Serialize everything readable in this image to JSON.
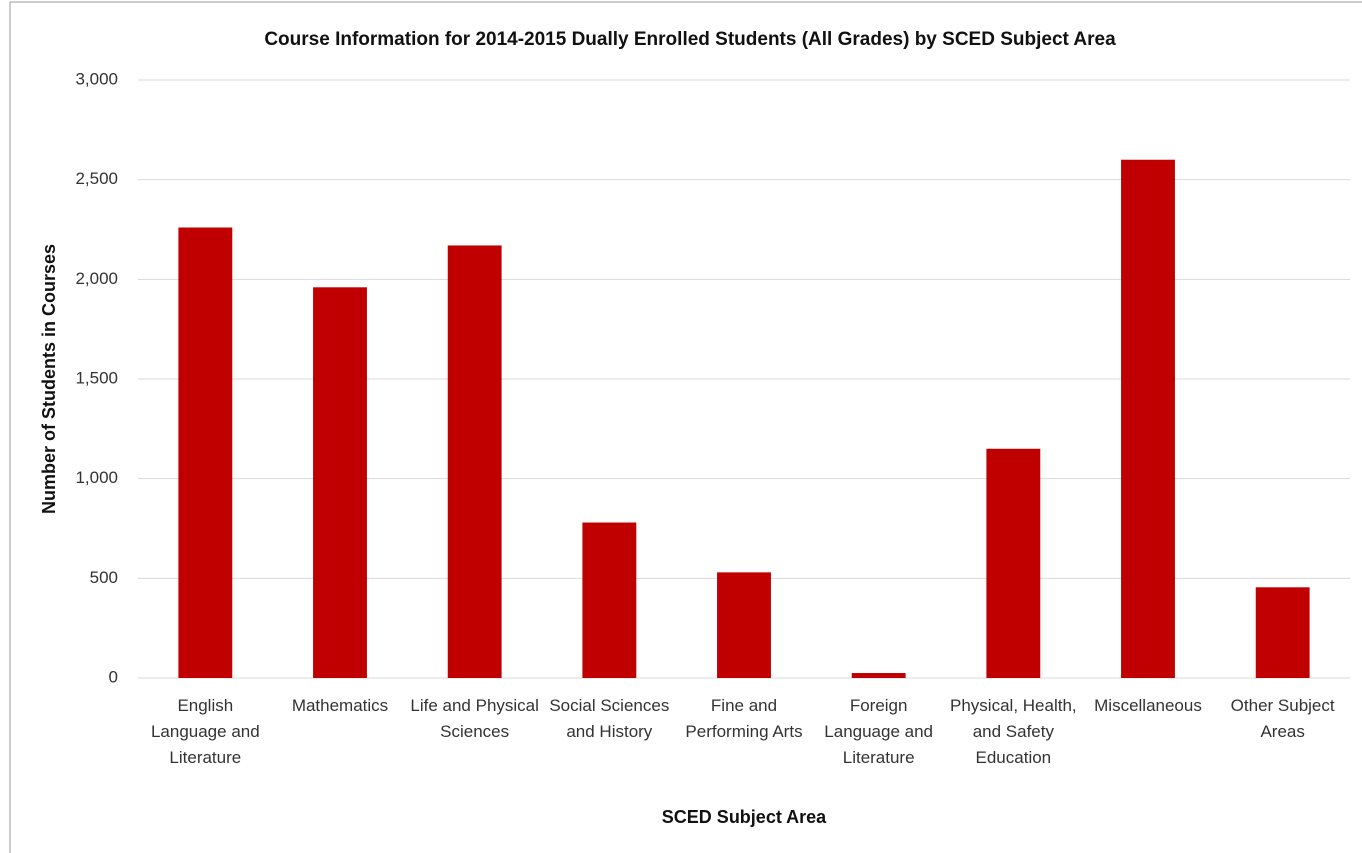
{
  "chart_data": {
    "type": "bar",
    "title": "Course Information for 2014-2015 Dually Enrolled Students (All Grades) by SCED Subject Area",
    "x_label": "SCED Subject Area",
    "y_label": "Number of Students in Courses",
    "categories": [
      "English Language and Literature",
      "Mathematics",
      "Life and Physical Sciences",
      "Social Sciences and History",
      "Fine and Performing Arts",
      "Foreign Language and Literature",
      "Physical, Health, and Safety Education",
      "Miscellaneous",
      "Other Subject Areas"
    ],
    "values": [
      2260,
      1960,
      2170,
      780,
      530,
      25,
      1150,
      2600,
      455
    ],
    "color": "#c00000",
    "ylim": [
      0,
      3000
    ],
    "yticks": [
      0,
      500,
      {
        "value": 1000,
        "label": "1,000"
      },
      {
        "value": 1500,
        "label": "1,500"
      },
      {
        "value": 2000,
        "label": "2,000"
      },
      {
        "value": 2500,
        "label": "2,500"
      },
      {
        "value": 3000,
        "label": "3,000"
      }
    ],
    "grid": true
  }
}
